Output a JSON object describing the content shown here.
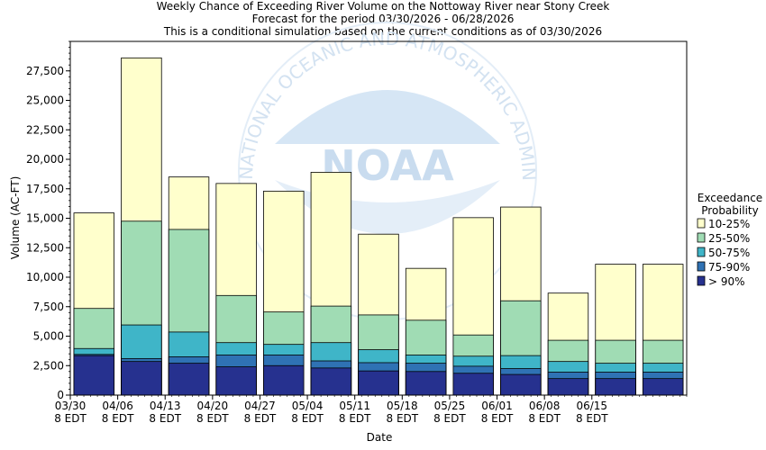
{
  "chart_data": {
    "type": "bar",
    "title_lines": [
      "Weekly Chance of Exceeding River Volume on the Nottoway River near Stony Creek",
      "Forecast for the period 03/30/2026 - 06/28/2026",
      "This is a conditional simulation based on the current conditions as of 03/30/2026"
    ],
    "xlabel": "Date",
    "ylabel": "Volume (AC-FT)",
    "ylim": [
      0,
      30000
    ],
    "yticks": [
      0,
      2500,
      5000,
      7500,
      10000,
      12500,
      15000,
      17500,
      20000,
      22500,
      25000,
      27500
    ],
    "ytick_labels": [
      "0",
      "2,500",
      "5,000",
      "7,500",
      "10,000",
      "12,500",
      "15,000",
      "17,500",
      "20,000",
      "22,500",
      "25,000",
      "27,500"
    ],
    "xtick_labels": [
      [
        "03/30",
        "8 EDT"
      ],
      [
        "04/06",
        "8 EDT"
      ],
      [
        "04/13",
        "8 EDT"
      ],
      [
        "04/20",
        "8 EDT"
      ],
      [
        "04/27",
        "8 EDT"
      ],
      [
        "05/04",
        "8 EDT"
      ],
      [
        "05/11",
        "8 EDT"
      ],
      [
        "05/18",
        "8 EDT"
      ],
      [
        "05/25",
        "8 EDT"
      ],
      [
        "06/01",
        "8 EDT"
      ],
      [
        "06/08",
        "8 EDT"
      ],
      [
        "06/15",
        "8 EDT"
      ]
    ],
    "legend_title": [
      "Exceedance",
      "Probability"
    ],
    "legend_position": "right",
    "weeks": 13,
    "series": [
      {
        "name": "> 90%",
        "color": "#26318f",
        "values": [
          3350,
          2850,
          2700,
          2400,
          2500,
          2300,
          2050,
          2000,
          1850,
          1750,
          1400,
          1400,
          1400
        ]
      },
      {
        "name": "75-90%",
        "color": "#2f72b4",
        "values": [
          3450,
          3100,
          3250,
          3400,
          3400,
          2900,
          2750,
          2700,
          2450,
          2250,
          1950,
          1950,
          1950
        ]
      },
      {
        "name": "50-75%",
        "color": "#3fb5c8",
        "values": [
          3950,
          5950,
          5350,
          4450,
          4300,
          4450,
          3850,
          3400,
          3300,
          3350,
          2850,
          2700,
          2700
        ]
      },
      {
        "name": "25-50%",
        "color": "#a0dcb4",
        "values": [
          7350,
          14750,
          14050,
          8450,
          7050,
          7550,
          6800,
          6350,
          5100,
          8000,
          4650,
          4650,
          4650
        ]
      },
      {
        "name": "10-25%",
        "color": "#ffffcc",
        "values": [
          15450,
          28600,
          18500,
          17950,
          17300,
          18900,
          13650,
          10750,
          15050,
          15950,
          8650,
          11100,
          11100
        ]
      }
    ],
    "legend_order": [
      "10-25%",
      "25-50%",
      "50-75%",
      "75-90%",
      "> 90%"
    ],
    "grid": false,
    "watermark_text": "NATIONAL OCEANIC AND ATMOSPHERIC ADMINISTRATION",
    "watermark_logo_text": "NOAA"
  }
}
